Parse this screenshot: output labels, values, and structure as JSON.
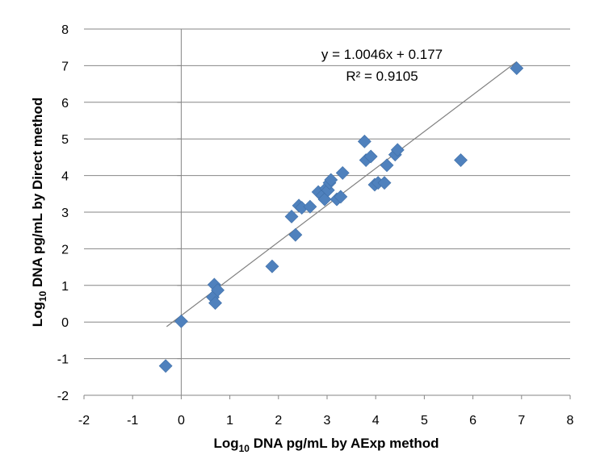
{
  "chart_data": {
    "type": "scatter",
    "title": "",
    "xlabel": {
      "prefix": "Log",
      "sub": "10",
      "rest": " DNA pg/mL by AExp method"
    },
    "ylabel": {
      "prefix": "Log",
      "sub": "10",
      "rest": " DNA pg/mL by Direct method"
    },
    "xlim": [
      -2,
      8
    ],
    "ylim": [
      -2,
      8
    ],
    "x_ticks": [
      -2,
      -1,
      0,
      1,
      2,
      3,
      4,
      5,
      6,
      7,
      8
    ],
    "y_ticks": [
      -2,
      -1,
      0,
      1,
      2,
      3,
      4,
      5,
      6,
      7,
      8
    ],
    "x_tick_labels": [
      "-2",
      "-1",
      "0",
      "1",
      "2",
      "3",
      "4",
      "5",
      "6",
      "7",
      "8"
    ],
    "y_tick_labels": [
      "-2",
      "-1",
      "0",
      "1",
      "2",
      "3",
      "4",
      "5",
      "6",
      "7",
      "8"
    ],
    "grid": "horizontal",
    "marker_color": "#4F81BD",
    "trendline_color": "#808080",
    "points": [
      {
        "x": -0.32,
        "y": -1.2
      },
      {
        "x": 0.0,
        "y": 0.02
      },
      {
        "x": 0.65,
        "y": 0.68
      },
      {
        "x": 0.68,
        "y": 1.02
      },
      {
        "x": 0.7,
        "y": 0.52
      },
      {
        "x": 0.75,
        "y": 0.87
      },
      {
        "x": 1.87,
        "y": 1.52
      },
      {
        "x": 2.27,
        "y": 2.88
      },
      {
        "x": 2.35,
        "y": 2.38
      },
      {
        "x": 2.42,
        "y": 3.18
      },
      {
        "x": 2.48,
        "y": 3.12
      },
      {
        "x": 2.65,
        "y": 3.15
      },
      {
        "x": 2.82,
        "y": 3.55
      },
      {
        "x": 2.9,
        "y": 3.45
      },
      {
        "x": 2.95,
        "y": 3.35
      },
      {
        "x": 2.98,
        "y": 3.65
      },
      {
        "x": 3.02,
        "y": 3.6
      },
      {
        "x": 3.05,
        "y": 3.8
      },
      {
        "x": 3.08,
        "y": 3.88
      },
      {
        "x": 3.2,
        "y": 3.35
      },
      {
        "x": 3.28,
        "y": 3.42
      },
      {
        "x": 3.32,
        "y": 4.07
      },
      {
        "x": 3.77,
        "y": 4.93
      },
      {
        "x": 3.8,
        "y": 4.42
      },
      {
        "x": 3.9,
        "y": 4.52
      },
      {
        "x": 3.98,
        "y": 3.75
      },
      {
        "x": 4.05,
        "y": 3.8
      },
      {
        "x": 4.18,
        "y": 3.8
      },
      {
        "x": 4.23,
        "y": 4.28
      },
      {
        "x": 4.4,
        "y": 4.57
      },
      {
        "x": 4.45,
        "y": 4.7
      },
      {
        "x": 5.75,
        "y": 4.42
      },
      {
        "x": 6.9,
        "y": 6.93
      }
    ],
    "trendline": {
      "slope": 1.0046,
      "intercept": 0.177,
      "x_range": [
        -0.3,
        6.9
      ]
    },
    "annotations": {
      "equation": "y = 1.0046x + 0.177",
      "r_squared": "R² = 0.9105"
    }
  }
}
